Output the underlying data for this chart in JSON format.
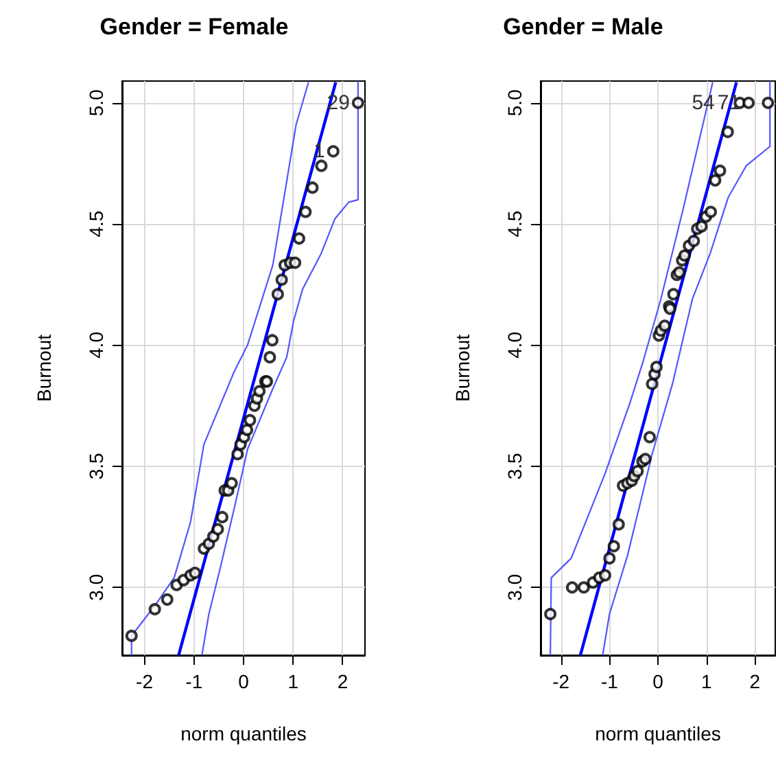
{
  "chart_data": [
    {
      "type": "scatter",
      "title": "Gender = Female",
      "xlabel": "norm quantiles",
      "ylabel": "Burnout",
      "xlim": [
        -2.45,
        2.45
      ],
      "ylim": [
        2.72,
        5.09
      ],
      "xticks": [
        -2,
        -1,
        0,
        1,
        2
      ],
      "yticks": [
        {
          "value": 3,
          "label": "3.0"
        },
        {
          "value": 3.5,
          "label": "3.5"
        },
        {
          "value": 4,
          "label": "4.0"
        },
        {
          "value": 4.5,
          "label": "4.5"
        },
        {
          "value": 5,
          "label": "5.0"
        }
      ],
      "grid": true,
      "annotations": [
        {
          "text": "29",
          "x": 2.31,
          "y": 5.0
        },
        {
          "text": "1",
          "x": 1.81,
          "y": 4.8
        }
      ],
      "series": [
        {
          "marker": "circle",
          "color": "#000000",
          "x": [
            -2.26,
            -1.79,
            -1.54,
            -1.35,
            -1.21,
            -1.07,
            -0.98,
            -0.8,
            -0.7,
            -0.61,
            -0.52,
            -0.43,
            -0.38,
            -0.31,
            -0.24,
            -0.12,
            -0.06,
            0.01,
            0.07,
            0.13,
            0.22,
            0.27,
            0.32,
            0.44,
            0.47,
            0.53,
            0.58,
            0.69,
            0.77,
            0.83,
            0.94,
            1.04,
            1.12,
            1.25,
            1.39,
            1.57,
            1.81,
            2.31
          ],
          "values": [
            2.8,
            2.91,
            2.95,
            3.01,
            3.03,
            3.05,
            3.06,
            3.16,
            3.18,
            3.21,
            3.24,
            3.29,
            3.4,
            3.4,
            3.43,
            3.55,
            3.59,
            3.62,
            3.65,
            3.69,
            3.75,
            3.78,
            3.81,
            3.85,
            3.85,
            3.95,
            4.02,
            4.21,
            4.27,
            4.33,
            4.34,
            4.34,
            4.44,
            4.55,
            4.65,
            4.74,
            4.8,
            5.0
          ]
        },
        {
          "type": "line",
          "color": "#0000ff",
          "x": [
            -1.31,
            1.86
          ],
          "values": [
            2.72,
            5.085
          ]
        },
        {
          "type": "line",
          "color": "#5555ff",
          "x": [
            -2.26,
            -2.26,
            -1.77,
            -1.4,
            -1.07,
            -0.8,
            -0.19,
            0.08,
            0.59,
            1.06,
            1.31
          ],
          "values": [
            2.72,
            2.8,
            2.93,
            3.04,
            3.27,
            3.59,
            3.89,
            4.0,
            4.33,
            4.91,
            5.085
          ]
        },
        {
          "type": "line",
          "color": "#5555ff",
          "x": [
            -0.84,
            -0.7,
            -0.47,
            -0.15,
            0.08,
            0.59,
            0.87,
            1.01,
            1.19,
            1.57,
            1.84,
            2.12,
            2.31,
            2.31
          ],
          "values": [
            2.72,
            2.89,
            3.08,
            3.36,
            3.57,
            3.82,
            3.95,
            4.1,
            4.23,
            4.38,
            4.52,
            4.59,
            4.6,
            5.09
          ]
        }
      ]
    },
    {
      "type": "scatter",
      "title": "Gender = Male",
      "xlabel": "norm quantiles",
      "ylabel": "Burnout",
      "xlim": [
        -2.42,
        2.42
      ],
      "ylim": [
        2.72,
        5.09
      ],
      "xticks": [
        -2,
        -1,
        0,
        1,
        2
      ],
      "yticks": [
        {
          "value": 3,
          "label": "3.0"
        },
        {
          "value": 3.5,
          "label": "3.5"
        },
        {
          "value": 4,
          "label": "4.0"
        },
        {
          "value": 4.5,
          "label": "4.5"
        },
        {
          "value": 5,
          "label": "5.0"
        }
      ],
      "grid": true,
      "annotations": [
        {
          "text": "54",
          "x": 1.69,
          "y": 5.0
        },
        {
          "text": "71",
          "x": 1.87,
          "y": 5.0
        }
      ],
      "series": [
        {
          "marker": "circle",
          "color": "#000000",
          "x": [
            -2.22,
            -1.77,
            -1.53,
            -1.34,
            -1.21,
            -1.09,
            -1.0,
            -0.91,
            -0.81,
            -0.72,
            -0.63,
            -0.54,
            -0.49,
            -0.42,
            -0.32,
            -0.26,
            -0.17,
            -0.12,
            -0.07,
            -0.03,
            0.02,
            0.06,
            0.14,
            0.23,
            0.25,
            0.32,
            0.39,
            0.44,
            0.5,
            0.55,
            0.64,
            0.74,
            0.81,
            0.9,
            0.99,
            1.09,
            1.18,
            1.28,
            1.44,
            1.69,
            1.87,
            2.27
          ],
          "values": [
            2.89,
            3.0,
            3.0,
            3.02,
            3.04,
            3.05,
            3.12,
            3.17,
            3.26,
            3.42,
            3.43,
            3.44,
            3.46,
            3.48,
            3.52,
            3.53,
            3.62,
            3.84,
            3.88,
            3.91,
            4.04,
            4.06,
            4.08,
            4.16,
            4.15,
            4.21,
            4.29,
            4.3,
            4.35,
            4.37,
            4.41,
            4.43,
            4.48,
            4.49,
            4.53,
            4.55,
            4.68,
            4.72,
            4.88,
            5.0,
            5.0,
            5.0
          ]
        },
        {
          "type": "line",
          "color": "#0000ff",
          "x": [
            -1.6,
            1.62
          ],
          "values": [
            2.72,
            5.085
          ]
        },
        {
          "type": "line",
          "color": "#5555ff",
          "x": [
            -2.22,
            -2.2,
            -1.79,
            -1.09,
            -0.58,
            -0.31,
            0.06,
            0.53,
            1.13
          ],
          "values": [
            2.72,
            3.04,
            3.12,
            3.47,
            3.76,
            3.93,
            4.19,
            4.57,
            5.085
          ]
        },
        {
          "type": "line",
          "color": "#5555ff",
          "x": [
            -1.14,
            -1.0,
            -0.63,
            -0.35,
            -0.12,
            0.3,
            0.71,
            1.08,
            1.45,
            1.82,
            2.31,
            2.31
          ],
          "values": [
            2.72,
            2.89,
            3.13,
            3.36,
            3.55,
            3.84,
            4.19,
            4.38,
            4.61,
            4.74,
            4.82,
            5.09
          ]
        }
      ]
    }
  ]
}
